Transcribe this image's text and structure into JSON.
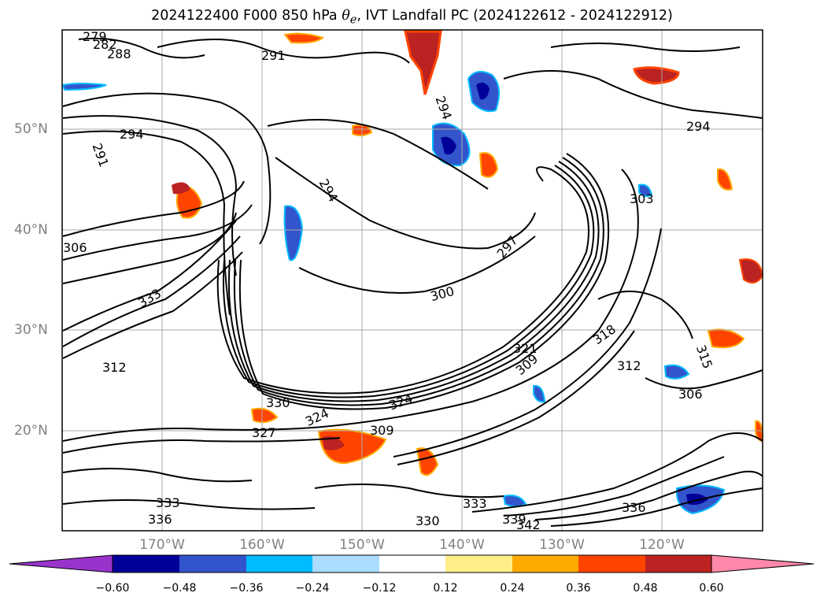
{
  "title": {
    "prefix": "2024122400 F000 850 hPa ",
    "symbol": "θ",
    "symbol_sub": "e",
    "suffix": ", IVT Landfall PC (2024122612 - 2024122912)"
  },
  "map": {
    "lat_labels": [
      "50°N",
      "40°N",
      "30°N",
      "20°N"
    ],
    "lon_labels": [
      "170°W",
      "160°W",
      "150°W",
      "140°W",
      "130°W",
      "120°W"
    ],
    "contour_labels": [
      "279",
      "282",
      "288",
      "294",
      "291",
      "294",
      "291",
      "294",
      "294",
      "297",
      "300",
      "303",
      "306",
      "309",
      "312",
      "315",
      "318",
      "321",
      "324",
      "327",
      "330",
      "333",
      "336",
      "339",
      "342"
    ],
    "contour_label_colors": "#000000"
  },
  "colorbar": {
    "ticks": [
      "−0.60",
      "−0.48",
      "−0.36",
      "−0.24",
      "−0.12",
      "0.12",
      "0.24",
      "0.36",
      "0.48",
      "0.60"
    ],
    "colors": [
      "#9933cc",
      "#000099",
      "#3355cc",
      "#00bbff",
      "#aaddff",
      "#ffffff",
      "#ffee88",
      "#ffaa00",
      "#ff4400",
      "#bb2222",
      "#ff88aa"
    ]
  }
}
